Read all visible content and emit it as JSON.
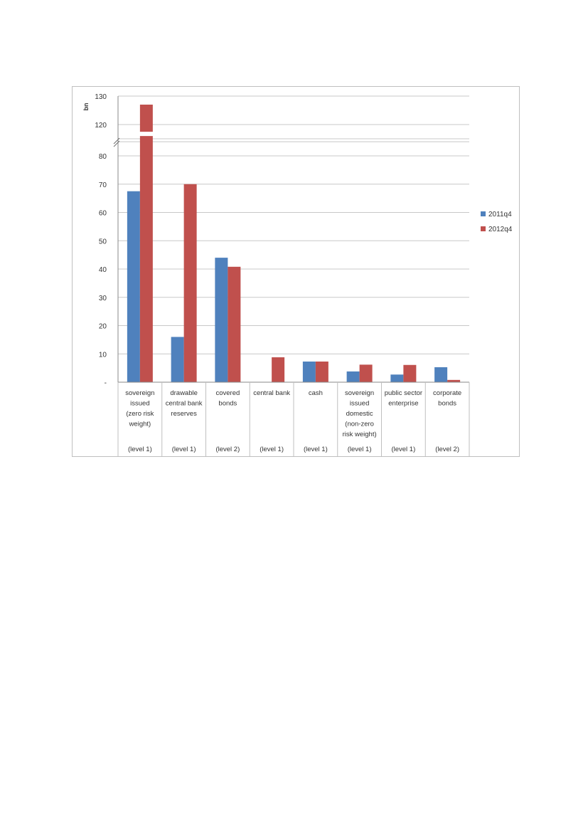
{
  "chart_data": {
    "type": "bar",
    "ylabel": "bn",
    "y_ticks": [
      "-",
      "10",
      "20",
      "30",
      "40",
      "50",
      "60",
      "70",
      "80",
      "120",
      "130"
    ],
    "y_axis_break": [
      85,
      115
    ],
    "categories": [
      {
        "label": [
          "sovereign",
          "issued",
          "(zero risk",
          "weight)"
        ],
        "level": "(level 1)"
      },
      {
        "label": [
          "drawable",
          "central bank",
          "reserves"
        ],
        "level": "(level 1)"
      },
      {
        "label": [
          "covered",
          "bonds"
        ],
        "level": "(level 2)"
      },
      {
        "label": [
          "central bank"
        ],
        "level": "(level 1)"
      },
      {
        "label": [
          "cash"
        ],
        "level": "(level 1)"
      },
      {
        "label": [
          "sovereign",
          "issued",
          "domestic",
          "(non-zero",
          "risk weight)"
        ],
        "level": "(level 1)"
      },
      {
        "label": [
          "public sector",
          "enterprise"
        ],
        "level": "(level 1)"
      },
      {
        "label": [
          "corporate",
          "bonds"
        ],
        "level": "(level 2)"
      }
    ],
    "series": [
      {
        "name": "2011q4",
        "color": "#4f81bd",
        "values": [
          67.5,
          16,
          44,
          0,
          7.3,
          3.8,
          2.7,
          5.3
        ]
      },
      {
        "name": "2012q4",
        "color": "#c0504d",
        "values": [
          127,
          70,
          40.8,
          8.8,
          7.3,
          6.2,
          6.1,
          0.8
        ]
      }
    ],
    "grid": true,
    "legend_position": "right"
  }
}
